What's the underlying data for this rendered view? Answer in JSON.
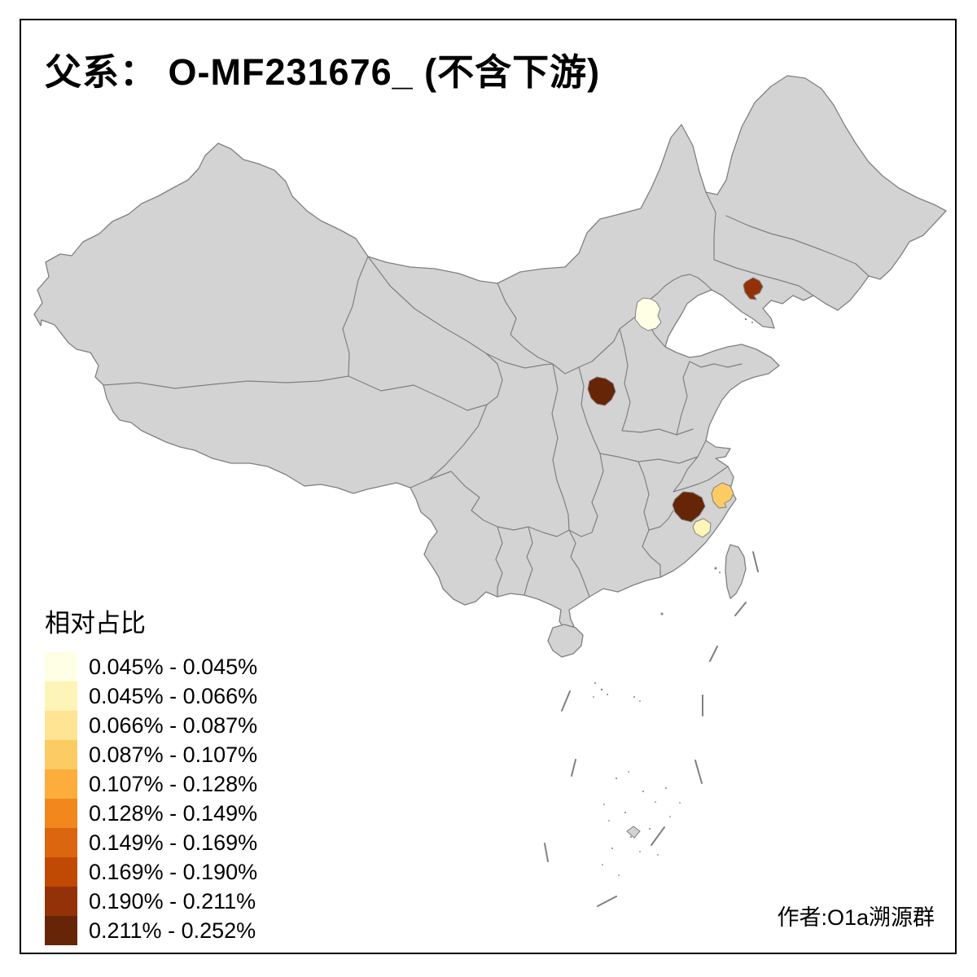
{
  "title": {
    "text": "父系： O-MF231676_ (不含下游)"
  },
  "legend": {
    "title": "相对占比",
    "items": [
      {
        "label": "0.045% - 0.045%",
        "color": "#FFFFE5"
      },
      {
        "label": "0.045% - 0.066%",
        "color": "#FDF4B8"
      },
      {
        "label": "0.066% - 0.087%",
        "color": "#FEE493"
      },
      {
        "label": "0.087% - 0.107%",
        "color": "#FDCB63"
      },
      {
        "label": "0.107% - 0.128%",
        "color": "#FDAD3B"
      },
      {
        "label": "0.128% - 0.149%",
        "color": "#F2871E"
      },
      {
        "label": "0.149% - 0.169%",
        "color": "#DC6510"
      },
      {
        "label": "0.169% - 0.190%",
        "color": "#C04A04"
      },
      {
        "label": "0.190% - 0.211%",
        "color": "#933209"
      },
      {
        "label": "0.211% - 0.252%",
        "color": "#662506"
      }
    ]
  },
  "credit": {
    "text": "作者:O1a溯源群"
  },
  "map": {
    "land_fill": "#D3D3D3",
    "border_stroke": "#808080",
    "sea_fill": "#FFFFFF",
    "frame_color": "#000000",
    "highlighted_regions": [
      {
        "id": "north-hebei",
        "legend_index": 0,
        "color": "#FFFFE5"
      },
      {
        "id": "east-fujian",
        "legend_index": 1,
        "color": "#FDF4B8"
      },
      {
        "id": "south-zhejiang",
        "legend_index": 3,
        "color": "#FDCB63"
      },
      {
        "id": "central-liaoning",
        "legend_index": 8,
        "color": "#933209"
      },
      {
        "id": "south-shanxi",
        "legend_index": 9,
        "color": "#662506"
      },
      {
        "id": "northwest-fujian",
        "legend_index": 9,
        "color": "#662506"
      }
    ]
  }
}
